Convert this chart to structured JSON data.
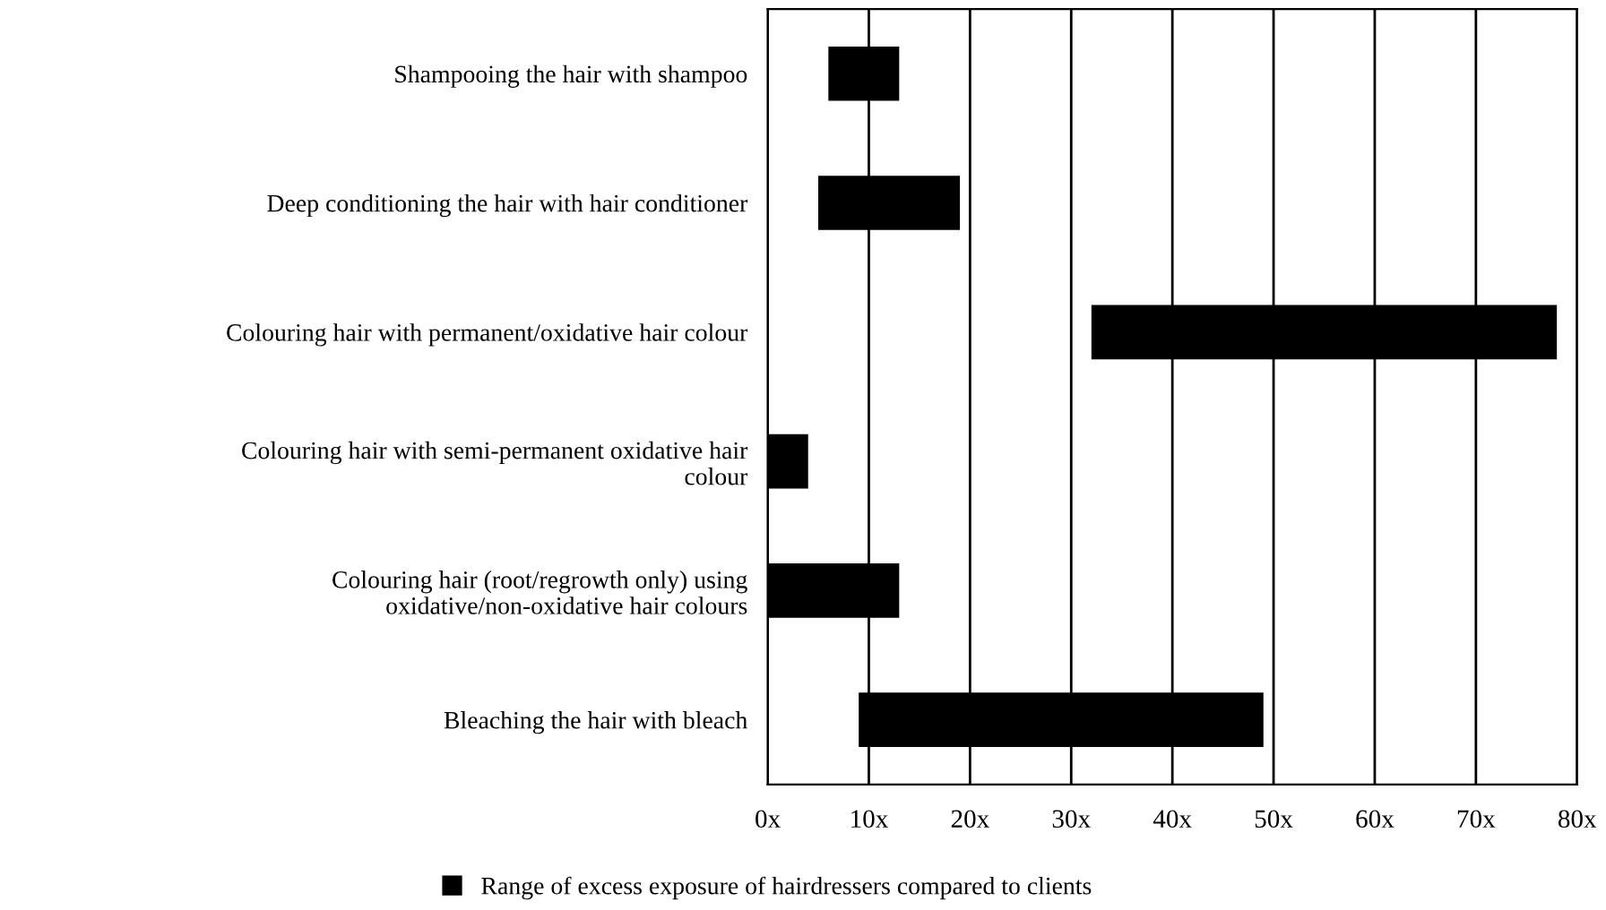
{
  "chart_data": {
    "type": "bar",
    "orientation": "horizontal",
    "categories": [
      "Shampooing the hair with shampoo",
      "Deep conditioning the hair with hair conditioner",
      "Colouring hair with permanent/oxidative hair colour",
      "Colouring hair with semi-permanent oxidative hair\ncolour",
      "Colouring hair (root/regrowth only) using\noxidative/non-oxidative hair colours",
      "Bleaching the hair with bleach"
    ],
    "series": [
      {
        "name": "Range of excess exposure of hairdressers compared to clients",
        "color": "#000000",
        "values": [
          7,
          14,
          46,
          4,
          13,
          40
        ],
        "base": [
          6,
          5,
          32,
          0,
          0,
          9
        ]
      }
    ],
    "xlim": [
      0,
      80
    ],
    "xticks": [
      {
        "value": 0,
        "label": "0x"
      },
      {
        "value": 10,
        "label": "10x"
      },
      {
        "value": 20,
        "label": "20x"
      },
      {
        "value": 30,
        "label": "30x"
      },
      {
        "value": 40,
        "label": "40x"
      },
      {
        "value": 50,
        "label": "50x"
      },
      {
        "value": 60,
        "label": "60x"
      },
      {
        "value": 70,
        "label": "70x"
      },
      {
        "value": 80,
        "label": "80x"
      }
    ],
    "grid": "x",
    "legend": "bottom"
  }
}
